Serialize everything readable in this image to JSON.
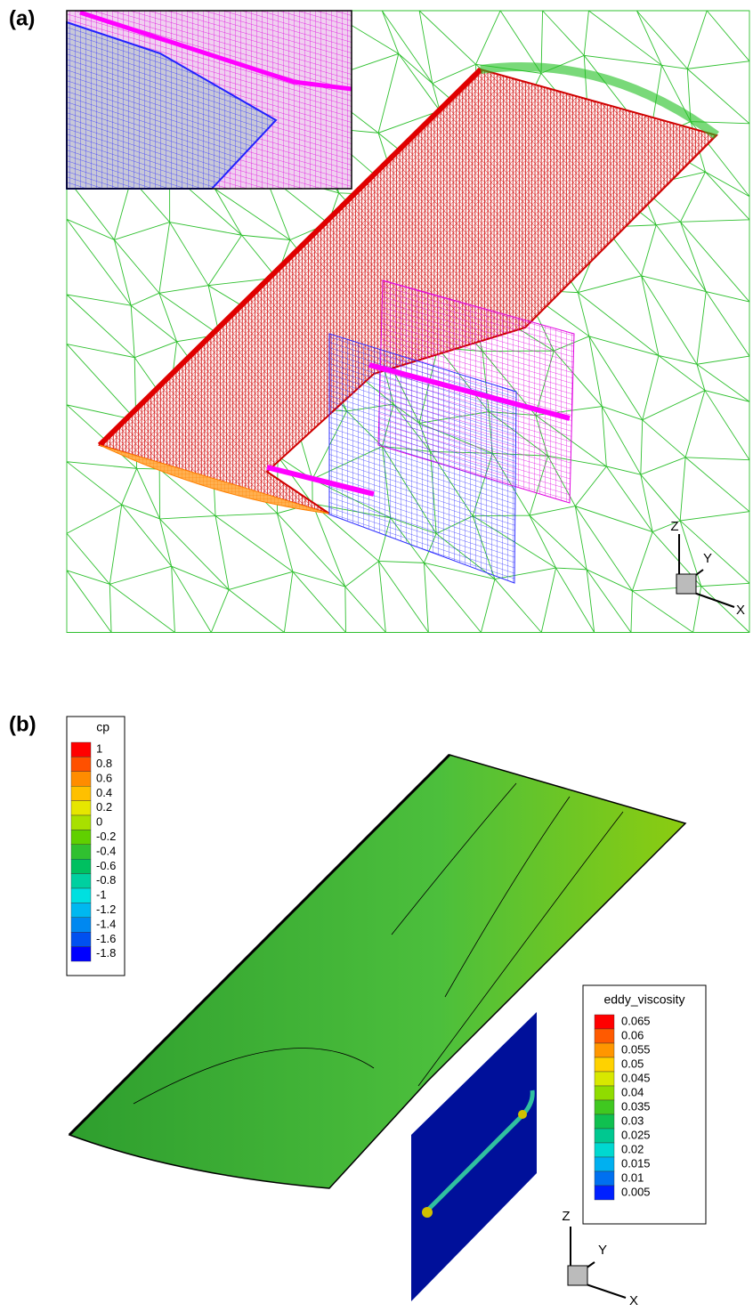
{
  "panels": [
    {
      "label": "(a)",
      "axes": {
        "z": "Z",
        "y": "Y",
        "x": "X"
      }
    },
    {
      "label": "(b)",
      "axes": {
        "z": "Z",
        "y": "Y",
        "x": "X"
      },
      "legends": [
        {
          "title": "cp",
          "levels": [
            1,
            0.8,
            0.6,
            0.4,
            0.2,
            0,
            -0.2,
            -0.4,
            -0.6,
            -0.8,
            -1,
            -1.2,
            -1.4,
            -1.6,
            -1.8
          ],
          "colors": [
            "#ff0000",
            "#ff5000",
            "#ff8c00",
            "#ffc000",
            "#e6e600",
            "#a8e000",
            "#60d000",
            "#30c030",
            "#00c060",
            "#00d0a0",
            "#00e0e0",
            "#00b8f0",
            "#0088f0",
            "#0050f0",
            "#0000ff"
          ]
        },
        {
          "title": "eddy_viscosity",
          "levels": [
            0.065,
            0.06,
            0.055,
            0.05,
            0.045,
            0.04,
            0.035,
            0.03,
            0.025,
            0.02,
            0.015,
            0.01,
            0.005
          ],
          "colors": [
            "#ff0000",
            "#ff5a00",
            "#ff9600",
            "#ffd200",
            "#d8e800",
            "#90dc00",
            "#40c820",
            "#10c050",
            "#00c890",
            "#00d8d0",
            "#00b0f0",
            "#0070f0",
            "#0020ff"
          ]
        }
      ]
    }
  ]
}
